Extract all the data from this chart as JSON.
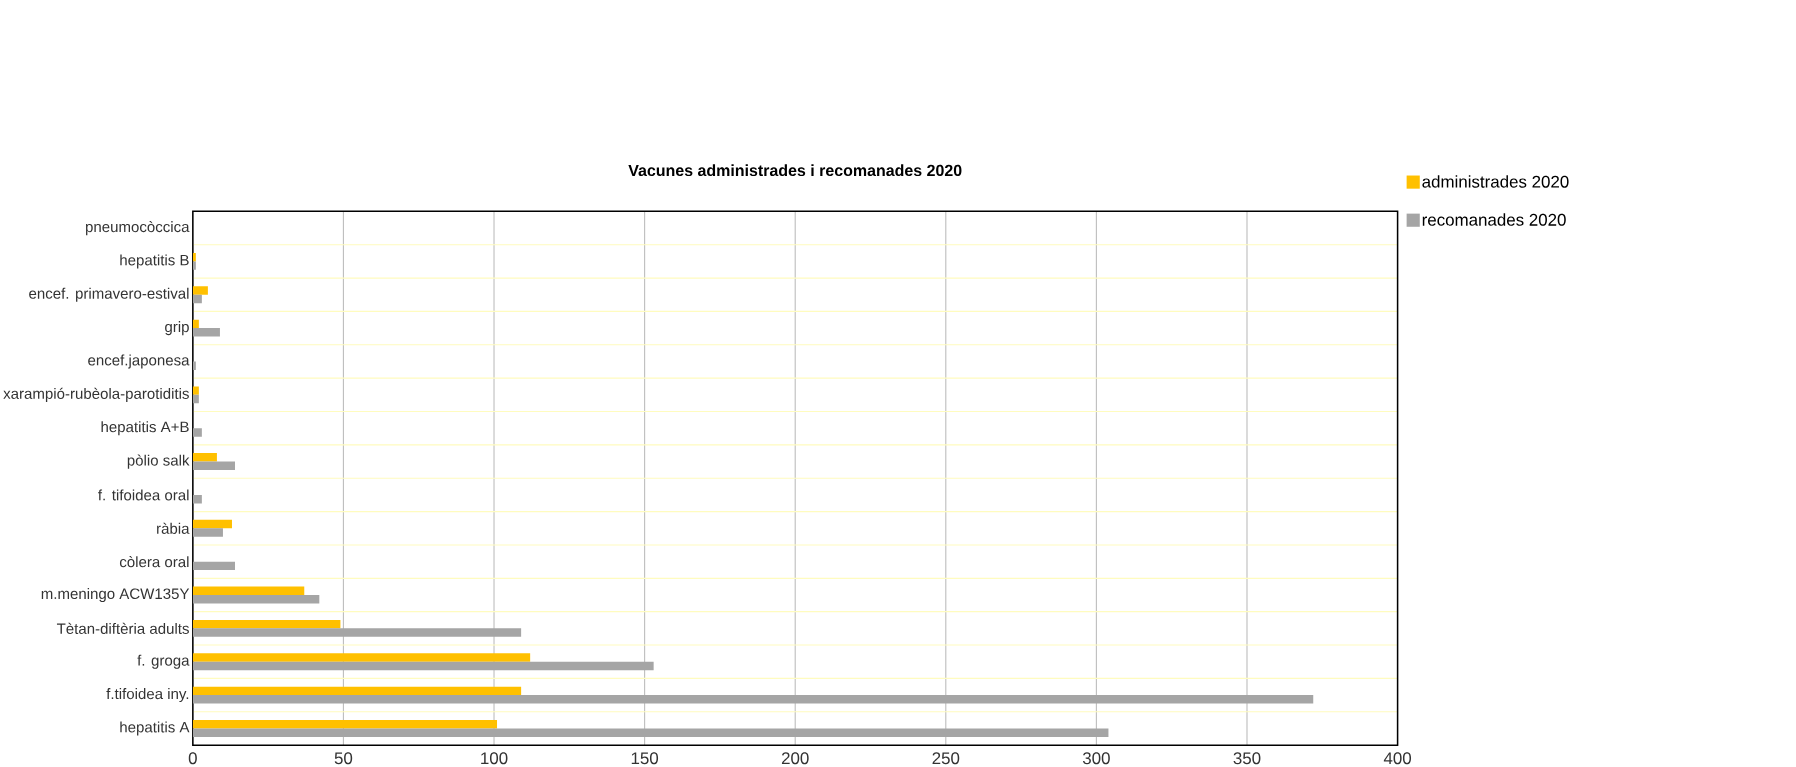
{
  "chart_data": {
    "type": "bar",
    "orientation": "horizontal",
    "title": "Vacunes administrades i recomanades 2020",
    "categories": [
      "pneumocòccica",
      "hepatitis B",
      "encef. primavero-estival",
      "grip",
      "encef.japonesa",
      "xarampió-rubèola-parotiditis",
      "hepatitis A+B",
      "pòlio salk",
      "f. tifoidea oral",
      "ràbia",
      "còlera oral",
      "m.meningo ACW135Y",
      "Tètan-diftèria adults",
      "f. groga",
      "f.tifoidea iny.",
      "hepatitis A"
    ],
    "series": [
      {
        "name": "administrades 2020",
        "color": "#ffc000",
        "values": [
          0,
          1,
          5,
          2,
          0,
          2,
          0,
          8,
          0,
          13,
          0,
          37,
          49,
          112,
          109,
          101
        ]
      },
      {
        "name": "recomanades 2020",
        "color": "#a5a5a5",
        "values": [
          0,
          1,
          3,
          9,
          1,
          2,
          3,
          14,
          3,
          10,
          14,
          42,
          109,
          153,
          372,
          304
        ]
      }
    ],
    "xlim": [
      0,
      400
    ],
    "xticks": [
      0,
      50,
      100,
      150,
      200,
      250,
      300,
      350,
      400
    ],
    "grid": true,
    "legend": "top right"
  }
}
